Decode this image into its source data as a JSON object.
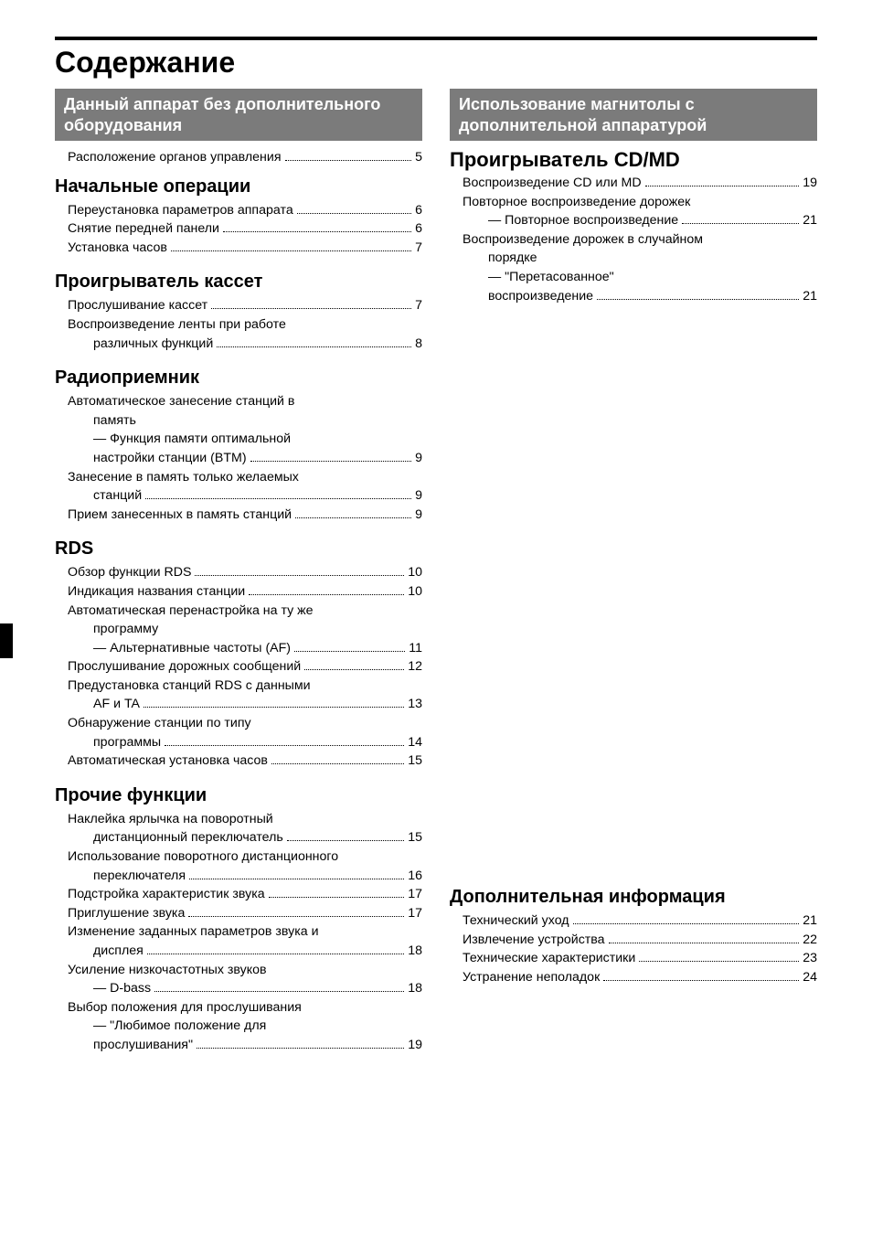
{
  "title": "Содержание",
  "left": {
    "bar": "Данный аппарат без дополнительного оборудования",
    "lone": {
      "label": "Расположение органов управления",
      "page": "5"
    },
    "sections": [
      {
        "heading": "Начальные операции",
        "items": [
          {
            "lines": [
              {
                "label": "Переустановка параметров аппарата",
                "page": "6"
              }
            ]
          },
          {
            "lines": [
              {
                "label": "Снятие передней панели",
                "page": "6"
              }
            ]
          },
          {
            "lines": [
              {
                "label": "Установка часов",
                "page": "7"
              }
            ]
          }
        ]
      },
      {
        "heading": "Проигрыватель кассет",
        "items": [
          {
            "lines": [
              {
                "label": "Прослушивание кассет",
                "page": "7"
              }
            ]
          },
          {
            "lines": [
              {
                "label": "Воспроизведение ленты при работе",
                "page": null
              },
              {
                "label": "различных функций",
                "page": "8",
                "indent": true
              }
            ]
          }
        ]
      },
      {
        "heading": "Радиоприемник",
        "items": [
          {
            "lines": [
              {
                "label": "Автоматическое занесение станций в",
                "page": null
              },
              {
                "label": "память",
                "page": null,
                "indent": true
              },
              {
                "label": "— Функция памяти оптимальной",
                "page": null,
                "indent": true
              },
              {
                "label": "настройки станции (BTM)",
                "page": "9",
                "indent": true
              }
            ]
          },
          {
            "lines": [
              {
                "label": "Занесение в память только желаемых",
                "page": null
              },
              {
                "label": "станций",
                "page": "9",
                "indent": true
              }
            ]
          },
          {
            "lines": [
              {
                "label": "Прием занесенных в память станций",
                "page": "9"
              }
            ]
          }
        ]
      },
      {
        "heading": "RDS",
        "items": [
          {
            "lines": [
              {
                "label": "Обзор функции RDS",
                "page": "10"
              }
            ]
          },
          {
            "lines": [
              {
                "label": "Индикация названия станции",
                "page": "10"
              }
            ]
          },
          {
            "lines": [
              {
                "label": "Автоматическая перенастройка на ту же",
                "page": null
              },
              {
                "label": "программу",
                "page": null,
                "indent": true
              },
              {
                "label": "— Альтернативные частоты (AF)",
                "page": "11",
                "indent": true
              }
            ]
          },
          {
            "lines": [
              {
                "label": "Прослушивание дорожных сообщений",
                "page": "12"
              }
            ]
          },
          {
            "lines": [
              {
                "label": "Предустановка станций RDS с данными",
                "page": null
              },
              {
                "label": "AF и TA",
                "page": "13",
                "indent": true
              }
            ]
          },
          {
            "lines": [
              {
                "label": "Обнаружение станции по типу",
                "page": null
              },
              {
                "label": "программы",
                "page": "14",
                "indent": true
              }
            ]
          },
          {
            "lines": [
              {
                "label": "Автоматическая установка часов",
                "page": "15"
              }
            ]
          }
        ]
      },
      {
        "heading": "Прочие функции",
        "items": [
          {
            "lines": [
              {
                "label": "Наклейка ярлычка на поворотный",
                "page": null
              },
              {
                "label": "дистанционный переключатель",
                "page": "15",
                "indent": true
              }
            ]
          },
          {
            "lines": [
              {
                "label": "Использование поворотного дистанционного",
                "page": null
              },
              {
                "label": "переключателя",
                "page": "16",
                "indent": true
              }
            ]
          },
          {
            "lines": [
              {
                "label": "Подстройка характеристик звука",
                "page": "17"
              }
            ]
          },
          {
            "lines": [
              {
                "label": "Приглушение звука",
                "page": "17"
              }
            ]
          },
          {
            "lines": [
              {
                "label": "Изменение заданных параметров звука и",
                "page": null
              },
              {
                "label": "дисплея",
                "page": "18",
                "indent": true
              }
            ]
          },
          {
            "lines": [
              {
                "label": "Усиление низкочастотных звуков",
                "page": null
              },
              {
                "label": "— D-bass",
                "page": "18",
                "indent": true
              }
            ]
          },
          {
            "lines": [
              {
                "label": "Выбор положения для прослушивания",
                "page": null
              },
              {
                "label": "— \"Любимое положение для",
                "page": null,
                "indent": true
              },
              {
                "label": "прослушивания\"",
                "page": "19",
                "indent": true
              }
            ]
          }
        ]
      }
    ]
  },
  "right": {
    "bar": "Использование магнитолы с дополнительной аппаратурой",
    "player": {
      "heading": "Проигрыватель CD/MD",
      "items": [
        {
          "lines": [
            {
              "label": "Воспроизведение CD или MD",
              "page": "19"
            }
          ]
        },
        {
          "lines": [
            {
              "label": "Повторное воспроизведение дорожек",
              "page": null
            },
            {
              "label": "— Повторное воспроизведение",
              "page": "21",
              "indent": true
            }
          ]
        },
        {
          "lines": [
            {
              "label": "Воспроизведение дорожек в случайном",
              "page": null
            },
            {
              "label": "порядке",
              "page": null,
              "indent": true
            },
            {
              "label": "— \"Перетасованное\"",
              "page": null,
              "indent": true
            },
            {
              "label": "воспроизведение",
              "page": "21",
              "indent": true
            }
          ]
        }
      ]
    },
    "addinfo": {
      "heading": "Дополнительная информация",
      "items": [
        {
          "lines": [
            {
              "label": "Технический уход",
              "page": "21"
            }
          ]
        },
        {
          "lines": [
            {
              "label": "Извлечение устройства",
              "page": "22"
            }
          ]
        },
        {
          "lines": [
            {
              "label": "Технические характеристики",
              "page": "23"
            }
          ]
        },
        {
          "lines": [
            {
              "label": "Устранение неполадок",
              "page": "24"
            }
          ]
        }
      ]
    }
  }
}
